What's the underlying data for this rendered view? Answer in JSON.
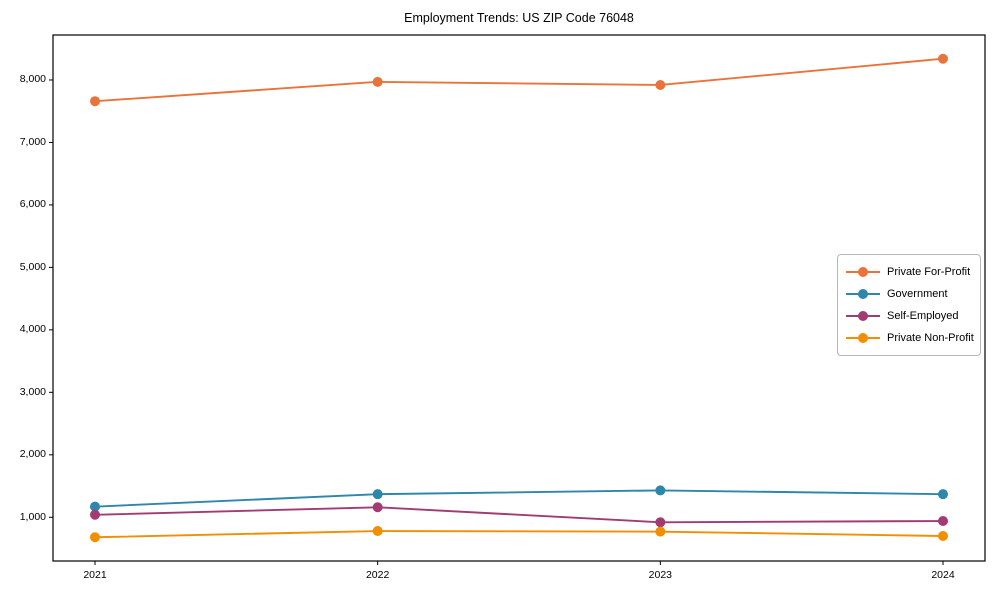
{
  "figure": {
    "background": "#ffffff",
    "spine_color": "#000000",
    "tick_color": "#000000"
  },
  "chart_data": {
    "type": "line",
    "title": "Employment Trends: US ZIP Code 76048",
    "xlabel": "",
    "ylabel": "",
    "x": [
      2021,
      2022,
      2023,
      2024
    ],
    "x_tick_labels": [
      "2021",
      "2022",
      "2023",
      "2024"
    ],
    "y_ticks": [
      1000,
      2000,
      3000,
      4000,
      5000,
      6000,
      7000,
      8000
    ],
    "y_tick_labels": [
      "1,000",
      "2,000",
      "3,000",
      "4,000",
      "5,000",
      "6,000",
      "7,000",
      "8,000"
    ],
    "ylim": [
      300,
      8720
    ],
    "grid": false,
    "legend_position": "center-right",
    "marker": "circle",
    "series": [
      {
        "name": "Private For-Profit",
        "color": "#E8743B",
        "values": [
          7660,
          7970,
          7920,
          8340
        ]
      },
      {
        "name": "Government",
        "color": "#2E86AB",
        "values": [
          1170,
          1370,
          1430,
          1370
        ]
      },
      {
        "name": "Self-Employed",
        "color": "#A23B72",
        "values": [
          1040,
          1160,
          920,
          940
        ]
      },
      {
        "name": "Private Non-Profit",
        "color": "#F18F01",
        "values": [
          680,
          780,
          770,
          700
        ]
      }
    ]
  }
}
